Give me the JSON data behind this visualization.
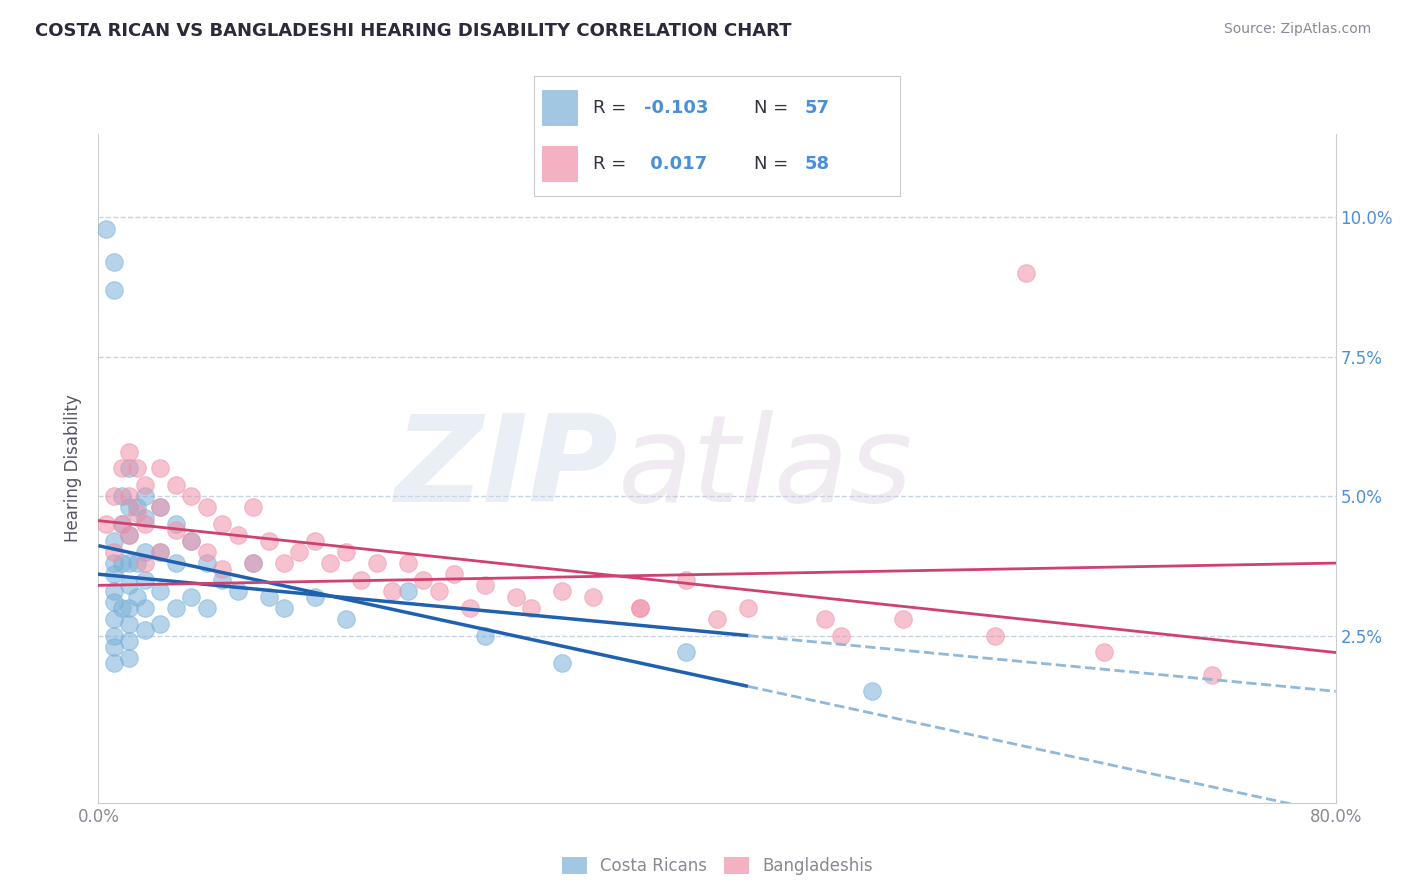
{
  "title": "COSTA RICAN VS BANGLADESHI HEARING DISABILITY CORRELATION CHART",
  "source_text": "Source: ZipAtlas.com",
  "ylabel": "Hearing Disability",
  "costa_rican_color": "#7ab0d8",
  "bangladeshi_color": "#f090a8",
  "costa_rican_line_color": "#2060b0",
  "bangladeshi_line_color": "#d04070",
  "dashed_line_color": "#90b8d8",
  "xlim": [
    0.0,
    0.8
  ],
  "ylim": [
    -0.005,
    0.115
  ],
  "yticks": [
    0.025,
    0.05,
    0.075,
    0.1
  ],
  "yticklabels": [
    "2.5%",
    "5.0%",
    "7.5%",
    "10.0%"
  ],
  "grid_color": "#c8d4e4",
  "background_color": "#ffffff",
  "watermark_zip": "ZIP",
  "watermark_atlas": "atlas",
  "title_color": "#2a2a3a",
  "axis_label_color": "#555566",
  "tick_color": "#888899",
  "right_tick_color": "#4a90d9",
  "source_color": "#888899",
  "legend_r1_val": "-0.103",
  "legend_r1_n": "57",
  "legend_r2_val": "0.017",
  "legend_r2_n": "58",
  "costa_rican_x": [
    0.005,
    0.01,
    0.01,
    0.01,
    0.01,
    0.01,
    0.01,
    0.01,
    0.01,
    0.01,
    0.01,
    0.01,
    0.015,
    0.015,
    0.015,
    0.015,
    0.02,
    0.02,
    0.02,
    0.02,
    0.02,
    0.02,
    0.02,
    0.02,
    0.02,
    0.025,
    0.025,
    0.025,
    0.03,
    0.03,
    0.03,
    0.03,
    0.03,
    0.03,
    0.04,
    0.04,
    0.04,
    0.04,
    0.05,
    0.05,
    0.05,
    0.06,
    0.06,
    0.07,
    0.07,
    0.08,
    0.09,
    0.1,
    0.11,
    0.12,
    0.14,
    0.16,
    0.2,
    0.25,
    0.3,
    0.38,
    0.5
  ],
  "costa_rican_y": [
    0.098,
    0.092,
    0.087,
    0.042,
    0.038,
    0.036,
    0.033,
    0.031,
    0.028,
    0.025,
    0.023,
    0.02,
    0.05,
    0.045,
    0.038,
    0.03,
    0.055,
    0.048,
    0.043,
    0.038,
    0.034,
    0.03,
    0.027,
    0.024,
    0.021,
    0.048,
    0.038,
    0.032,
    0.05,
    0.046,
    0.04,
    0.035,
    0.03,
    0.026,
    0.048,
    0.04,
    0.033,
    0.027,
    0.045,
    0.038,
    0.03,
    0.042,
    0.032,
    0.038,
    0.03,
    0.035,
    0.033,
    0.038,
    0.032,
    0.03,
    0.032,
    0.028,
    0.033,
    0.025,
    0.02,
    0.022,
    0.015
  ],
  "bangladeshi_x": [
    0.6,
    0.005,
    0.01,
    0.01,
    0.015,
    0.015,
    0.02,
    0.02,
    0.02,
    0.025,
    0.025,
    0.03,
    0.03,
    0.03,
    0.04,
    0.04,
    0.04,
    0.05,
    0.05,
    0.06,
    0.06,
    0.07,
    0.07,
    0.08,
    0.08,
    0.09,
    0.1,
    0.1,
    0.11,
    0.12,
    0.13,
    0.14,
    0.15,
    0.16,
    0.17,
    0.18,
    0.19,
    0.2,
    0.21,
    0.22,
    0.23,
    0.24,
    0.25,
    0.27,
    0.28,
    0.3,
    0.32,
    0.35,
    0.38,
    0.42,
    0.47,
    0.52,
    0.58,
    0.65,
    0.72,
    0.35,
    0.4,
    0.48
  ],
  "bangladeshi_y": [
    0.09,
    0.045,
    0.05,
    0.04,
    0.055,
    0.045,
    0.058,
    0.05,
    0.043,
    0.055,
    0.047,
    0.052,
    0.045,
    0.038,
    0.055,
    0.048,
    0.04,
    0.052,
    0.044,
    0.05,
    0.042,
    0.048,
    0.04,
    0.045,
    0.037,
    0.043,
    0.048,
    0.038,
    0.042,
    0.038,
    0.04,
    0.042,
    0.038,
    0.04,
    0.035,
    0.038,
    0.033,
    0.038,
    0.035,
    0.033,
    0.036,
    0.03,
    0.034,
    0.032,
    0.03,
    0.033,
    0.032,
    0.03,
    0.035,
    0.03,
    0.028,
    0.028,
    0.025,
    0.022,
    0.018,
    0.03,
    0.028,
    0.025
  ]
}
